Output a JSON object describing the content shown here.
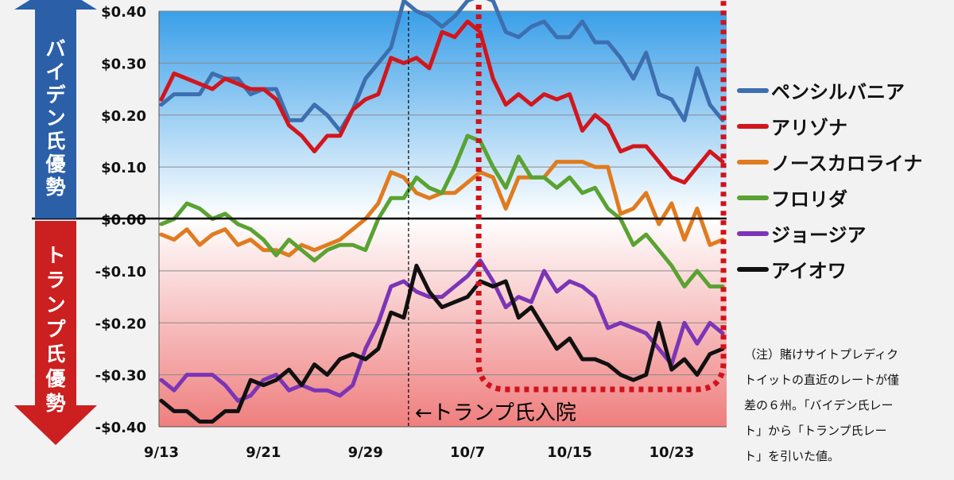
{
  "chart_data": {
    "type": "line",
    "categories": [
      "9/13",
      "9/14",
      "9/15",
      "9/16",
      "9/17",
      "9/18",
      "9/19",
      "9/20",
      "9/21",
      "9/22",
      "9/23",
      "9/24",
      "9/25",
      "9/26",
      "9/27",
      "9/28",
      "9/29",
      "9/30",
      "10/1",
      "10/2",
      "10/3",
      "10/4",
      "10/5",
      "10/6",
      "10/7",
      "10/8",
      "10/9",
      "10/10",
      "10/11",
      "10/12",
      "10/13",
      "10/14",
      "10/15",
      "10/16",
      "10/17",
      "10/18",
      "10/19",
      "10/20",
      "10/21",
      "10/22",
      "10/23",
      "10/24",
      "10/25",
      "10/26",
      "10/27"
    ],
    "x_tick_labels": [
      "9/13",
      "9/21",
      "9/29",
      "10/7",
      "10/15",
      "10/23"
    ],
    "y_tick_labels": [
      "$0.40",
      "$0.30",
      "$0.20",
      "$0.10",
      "$0.00",
      "-$0.10",
      "-$0.20",
      "-$0.30",
      "-$0.40"
    ],
    "ylim": [
      -0.4,
      0.4
    ],
    "grid": true,
    "legend_position": "right",
    "series": [
      {
        "name": "ペンシルバニア",
        "color": "#3d6fb0",
        "values": [
          0.22,
          0.24,
          0.24,
          0.24,
          0.28,
          0.27,
          0.27,
          0.24,
          0.25,
          0.25,
          0.19,
          0.19,
          0.22,
          0.2,
          0.17,
          0.21,
          0.27,
          0.3,
          0.33,
          0.42,
          0.4,
          0.39,
          0.37,
          0.39,
          0.42,
          0.43,
          0.42,
          0.36,
          0.35,
          0.37,
          0.38,
          0.35,
          0.35,
          0.38,
          0.34,
          0.34,
          0.31,
          0.27,
          0.32,
          0.24,
          0.23,
          0.19,
          0.29,
          0.22,
          0.19
        ]
      },
      {
        "name": "アリゾナ",
        "color": "#d2161c",
        "values": [
          0.23,
          0.28,
          0.27,
          0.26,
          0.25,
          0.27,
          0.26,
          0.25,
          0.25,
          0.23,
          0.18,
          0.16,
          0.13,
          0.16,
          0.16,
          0.21,
          0.23,
          0.24,
          0.31,
          0.3,
          0.31,
          0.29,
          0.36,
          0.35,
          0.38,
          0.36,
          0.27,
          0.22,
          0.24,
          0.22,
          0.24,
          0.23,
          0.24,
          0.17,
          0.2,
          0.18,
          0.13,
          0.14,
          0.14,
          0.11,
          0.08,
          0.07,
          0.1,
          0.13,
          0.11
        ]
      },
      {
        "name": "ノースカロライナ",
        "color": "#e07b1e",
        "values": [
          -0.03,
          -0.04,
          -0.02,
          -0.05,
          -0.03,
          -0.02,
          -0.05,
          -0.04,
          -0.06,
          -0.06,
          -0.07,
          -0.05,
          -0.06,
          -0.05,
          -0.04,
          -0.02,
          0.0,
          0.03,
          0.09,
          0.08,
          0.05,
          0.04,
          0.05,
          0.05,
          0.07,
          0.09,
          0.08,
          0.02,
          0.08,
          0.08,
          0.08,
          0.11,
          0.11,
          0.11,
          0.1,
          0.1,
          0.01,
          0.02,
          0.05,
          -0.01,
          0.03,
          -0.04,
          0.02,
          -0.05,
          -0.04
        ]
      },
      {
        "name": "フロリダ",
        "color": "#5aa332",
        "values": [
          -0.01,
          0.0,
          0.03,
          0.02,
          0.0,
          0.01,
          -0.01,
          -0.02,
          -0.04,
          -0.07,
          -0.04,
          -0.06,
          -0.08,
          -0.06,
          -0.05,
          -0.05,
          -0.06,
          0.0,
          0.04,
          0.04,
          0.08,
          0.06,
          0.05,
          0.1,
          0.16,
          0.15,
          0.1,
          0.06,
          0.12,
          0.08,
          0.08,
          0.06,
          0.08,
          0.05,
          0.06,
          0.02,
          0.0,
          -0.05,
          -0.03,
          -0.06,
          -0.09,
          -0.13,
          -0.1,
          -0.13,
          -0.13
        ]
      },
      {
        "name": "ジョージア",
        "color": "#7b35b6",
        "values": [
          -0.31,
          -0.33,
          -0.3,
          -0.3,
          -0.3,
          -0.32,
          -0.35,
          -0.34,
          -0.31,
          -0.3,
          -0.33,
          -0.32,
          -0.33,
          -0.33,
          -0.34,
          -0.32,
          -0.25,
          -0.2,
          -0.13,
          -0.12,
          -0.14,
          -0.15,
          -0.15,
          -0.13,
          -0.11,
          -0.08,
          -0.12,
          -0.17,
          -0.15,
          -0.16,
          -0.1,
          -0.14,
          -0.12,
          -0.13,
          -0.15,
          -0.21,
          -0.2,
          -0.21,
          -0.22,
          -0.25,
          -0.28,
          -0.2,
          -0.24,
          -0.2,
          -0.22
        ]
      },
      {
        "name": "アイオワ",
        "color": "#111111",
        "values": [
          -0.35,
          -0.37,
          -0.37,
          -0.39,
          -0.39,
          -0.37,
          -0.37,
          -0.31,
          -0.32,
          -0.31,
          -0.29,
          -0.32,
          -0.28,
          -0.3,
          -0.27,
          -0.26,
          -0.27,
          -0.25,
          -0.18,
          -0.19,
          -0.09,
          -0.14,
          -0.17,
          -0.16,
          -0.15,
          -0.12,
          -0.13,
          -0.12,
          -0.19,
          -0.17,
          -0.21,
          -0.25,
          -0.23,
          -0.27,
          -0.27,
          -0.28,
          -0.3,
          -0.31,
          -0.3,
          -0.2,
          -0.29,
          -0.27,
          -0.3,
          -0.26,
          -0.25
        ]
      }
    ],
    "annotations": {
      "event_label": "←トランプ氏入院",
      "event_x": "10/2"
    },
    "biden_label": "バイデン氏優勢",
    "trump_label": "トランプ氏優勢"
  },
  "note": "（注）賭けサイトプレディク\nトイットの直近のレートが僅\n差の６州。「バイデン氏レー\nト」から「トランプ氏レー\nト」を引いた値。",
  "colors": {
    "biden_arrow": "#2b5fa8",
    "trump_arrow": "#cc1f1f",
    "highlight_box": "#d0121b"
  }
}
